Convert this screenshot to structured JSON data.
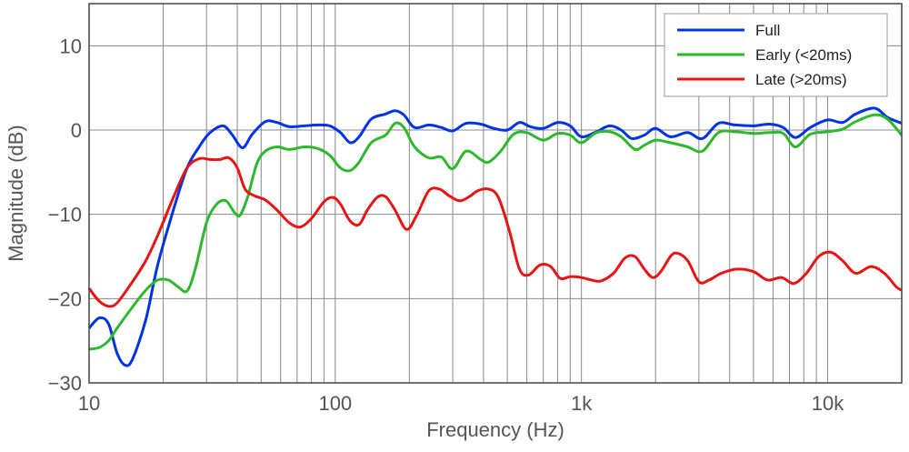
{
  "chart_data": {
    "type": "line",
    "title": "",
    "xlabel": "Frequency (Hz)",
    "ylabel": "Magnitude (dB)",
    "xscale": "log",
    "xlim": [
      10,
      20000
    ],
    "ylim": [
      -30,
      15
    ],
    "grid": "on",
    "legend_position": "top-right",
    "x_ticks": [
      10,
      100,
      1000,
      10000
    ],
    "x_tick_labels": [
      "10",
      "100",
      "1k",
      "10k"
    ],
    "y_ticks": [
      10,
      0,
      -10,
      -20,
      -30
    ],
    "y_tick_labels": [
      "10",
      "0",
      "−10",
      "−20",
      "−30"
    ],
    "series": [
      {
        "name": "Full",
        "color": "#0033e6",
        "points": [
          [
            10,
            -23.5
          ],
          [
            11,
            -22.3
          ],
          [
            12,
            -23.0
          ],
          [
            13,
            -26.5
          ],
          [
            14,
            -27.9
          ],
          [
            15,
            -27.2
          ],
          [
            17,
            -22.5
          ],
          [
            19,
            -16.0
          ],
          [
            22,
            -9.5
          ],
          [
            25,
            -4.5
          ],
          [
            28,
            -2.0
          ],
          [
            31,
            -0.3
          ],
          [
            35,
            0.5
          ],
          [
            38,
            -0.5
          ],
          [
            42,
            -2.1
          ],
          [
            46,
            -0.5
          ],
          [
            52,
            1.0
          ],
          [
            58,
            0.9
          ],
          [
            65,
            0.4
          ],
          [
            75,
            0.5
          ],
          [
            85,
            0.6
          ],
          [
            95,
            0.5
          ],
          [
            105,
            -0.3
          ],
          [
            115,
            -1.5
          ],
          [
            125,
            -0.8
          ],
          [
            140,
            1.3
          ],
          [
            160,
            1.9
          ],
          [
            175,
            2.3
          ],
          [
            190,
            1.8
          ],
          [
            210,
            0.3
          ],
          [
            240,
            0.6
          ],
          [
            270,
            0.3
          ],
          [
            300,
            -0.1
          ],
          [
            340,
            0.8
          ],
          [
            390,
            0.7
          ],
          [
            440,
            0.2
          ],
          [
            500,
            0.0
          ],
          [
            560,
            0.9
          ],
          [
            620,
            0.4
          ],
          [
            700,
            0.2
          ],
          [
            800,
            0.9
          ],
          [
            900,
            0.5
          ],
          [
            1000,
            -0.8
          ],
          [
            1150,
            -0.2
          ],
          [
            1300,
            0.5
          ],
          [
            1450,
            0.0
          ],
          [
            1600,
            -1.0
          ],
          [
            1800,
            -0.6
          ],
          [
            2000,
            0.2
          ],
          [
            2300,
            -0.8
          ],
          [
            2700,
            -0.3
          ],
          [
            3100,
            -1.0
          ],
          [
            3600,
            0.8
          ],
          [
            4200,
            0.6
          ],
          [
            5000,
            0.5
          ],
          [
            5800,
            0.7
          ],
          [
            6600,
            0.3
          ],
          [
            7400,
            -0.9
          ],
          [
            8500,
            0.3
          ],
          [
            10000,
            1.2
          ],
          [
            11500,
            0.9
          ],
          [
            13000,
            1.9
          ],
          [
            15500,
            2.6
          ],
          [
            17500,
            1.5
          ],
          [
            20000,
            0.8
          ]
        ]
      },
      {
        "name": "Early (<20ms)",
        "color": "#2db82d",
        "points": [
          [
            10,
            -26.0
          ],
          [
            11,
            -25.8
          ],
          [
            12,
            -25.0
          ],
          [
            13,
            -23.5
          ],
          [
            15,
            -21.0
          ],
          [
            17,
            -19.0
          ],
          [
            19,
            -17.8
          ],
          [
            21,
            -17.8
          ],
          [
            23,
            -18.6
          ],
          [
            25,
            -19.1
          ],
          [
            27,
            -16.5
          ],
          [
            30,
            -11.0
          ],
          [
            33,
            -8.8
          ],
          [
            36,
            -8.4
          ],
          [
            39,
            -9.8
          ],
          [
            41,
            -10.1
          ],
          [
            44,
            -8.0
          ],
          [
            48,
            -4.0
          ],
          [
            52,
            -2.5
          ],
          [
            58,
            -2.0
          ],
          [
            65,
            -2.3
          ],
          [
            75,
            -2.0
          ],
          [
            85,
            -2.2
          ],
          [
            95,
            -3.0
          ],
          [
            105,
            -4.5
          ],
          [
            115,
            -4.8
          ],
          [
            125,
            -3.8
          ],
          [
            140,
            -1.5
          ],
          [
            160,
            -0.6
          ],
          [
            175,
            0.8
          ],
          [
            190,
            0.3
          ],
          [
            210,
            -2.0
          ],
          [
            240,
            -3.3
          ],
          [
            270,
            -3.2
          ],
          [
            300,
            -4.6
          ],
          [
            340,
            -2.5
          ],
          [
            390,
            -3.5
          ],
          [
            420,
            -3.8
          ],
          [
            470,
            -2.5
          ],
          [
            530,
            -0.5
          ],
          [
            600,
            -0.3
          ],
          [
            700,
            -1.2
          ],
          [
            800,
            -0.4
          ],
          [
            900,
            -0.6
          ],
          [
            1000,
            -1.5
          ],
          [
            1150,
            -0.3
          ],
          [
            1300,
            -0.2
          ],
          [
            1450,
            -0.8
          ],
          [
            1650,
            -2.3
          ],
          [
            1800,
            -1.8
          ],
          [
            2000,
            -1.2
          ],
          [
            2300,
            -1.5
          ],
          [
            2700,
            -2.0
          ],
          [
            3100,
            -2.5
          ],
          [
            3600,
            -0.3
          ],
          [
            4200,
            -0.2
          ],
          [
            5000,
            -0.4
          ],
          [
            5800,
            -0.3
          ],
          [
            6600,
            -0.4
          ],
          [
            7400,
            -2.0
          ],
          [
            8500,
            -0.5
          ],
          [
            10000,
            -0.2
          ],
          [
            11500,
            0.1
          ],
          [
            13000,
            1.0
          ],
          [
            15500,
            1.8
          ],
          [
            17500,
            1.3
          ],
          [
            20000,
            -0.6
          ]
        ]
      },
      {
        "name": "Late (>20ms)",
        "color": "#e61414",
        "points": [
          [
            10,
            -18.8
          ],
          [
            11,
            -20.3
          ],
          [
            12,
            -20.9
          ],
          [
            13,
            -20.5
          ],
          [
            15,
            -18.0
          ],
          [
            17,
            -15.5
          ],
          [
            19,
            -12.5
          ],
          [
            22,
            -8.0
          ],
          [
            25,
            -4.5
          ],
          [
            28,
            -3.4
          ],
          [
            31,
            -3.5
          ],
          [
            34,
            -3.5
          ],
          [
            37,
            -3.3
          ],
          [
            40,
            -4.5
          ],
          [
            43,
            -7.0
          ],
          [
            47,
            -7.8
          ],
          [
            52,
            -8.3
          ],
          [
            58,
            -9.5
          ],
          [
            65,
            -11.0
          ],
          [
            72,
            -11.5
          ],
          [
            80,
            -10.5
          ],
          [
            90,
            -8.5
          ],
          [
            98,
            -8.0
          ],
          [
            105,
            -8.8
          ],
          [
            115,
            -10.8
          ],
          [
            125,
            -11.2
          ],
          [
            135,
            -9.5
          ],
          [
            148,
            -8.0
          ],
          [
            160,
            -7.9
          ],
          [
            175,
            -9.5
          ],
          [
            195,
            -11.8
          ],
          [
            215,
            -10.0
          ],
          [
            240,
            -7.2
          ],
          [
            265,
            -7.0
          ],
          [
            290,
            -7.8
          ],
          [
            320,
            -8.4
          ],
          [
            350,
            -7.9
          ],
          [
            380,
            -7.2
          ],
          [
            420,
            -7.0
          ],
          [
            460,
            -8.0
          ],
          [
            510,
            -12.0
          ],
          [
            560,
            -16.5
          ],
          [
            610,
            -17.2
          ],
          [
            680,
            -16.0
          ],
          [
            750,
            -16.2
          ],
          [
            820,
            -17.6
          ],
          [
            900,
            -17.4
          ],
          [
            1000,
            -17.5
          ],
          [
            1100,
            -17.8
          ],
          [
            1200,
            -17.9
          ],
          [
            1350,
            -17.0
          ],
          [
            1500,
            -15.2
          ],
          [
            1650,
            -15.0
          ],
          [
            1800,
            -16.5
          ],
          [
            1950,
            -17.5
          ],
          [
            2100,
            -16.8
          ],
          [
            2300,
            -15.0
          ],
          [
            2450,
            -14.6
          ],
          [
            2700,
            -15.5
          ],
          [
            3000,
            -18.0
          ],
          [
            3300,
            -17.8
          ],
          [
            3700,
            -17.0
          ],
          [
            4300,
            -16.5
          ],
          [
            5000,
            -16.8
          ],
          [
            5700,
            -17.8
          ],
          [
            6500,
            -17.5
          ],
          [
            7300,
            -18.2
          ],
          [
            8200,
            -17.0
          ],
          [
            9200,
            -15.0
          ],
          [
            10300,
            -14.5
          ],
          [
            11500,
            -15.5
          ],
          [
            13000,
            -17.0
          ],
          [
            15000,
            -16.2
          ],
          [
            17000,
            -17.0
          ],
          [
            19000,
            -18.6
          ],
          [
            20000,
            -19.0
          ]
        ]
      }
    ]
  }
}
